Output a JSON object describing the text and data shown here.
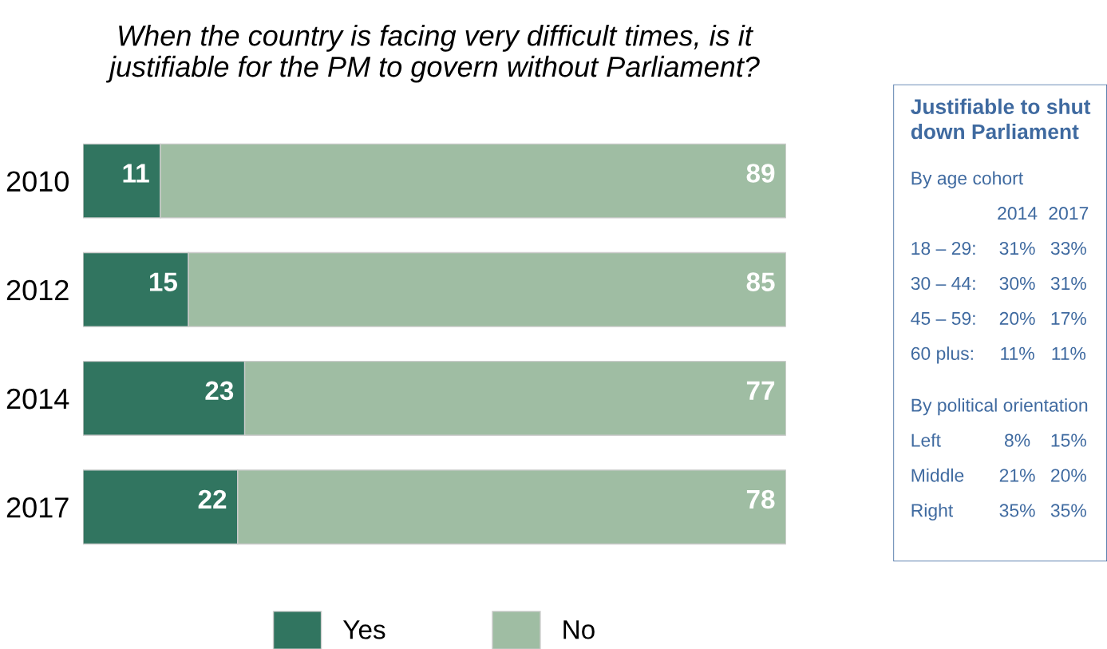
{
  "chart_data": [
    {
      "type": "bar",
      "orientation": "horizontal",
      "stacked": true,
      "title": "When the country is facing very difficult times, is it\njustifiable for the PM to govern without Parliament?",
      "categories": [
        "2010",
        "2012",
        "2014",
        "2017"
      ],
      "series": [
        {
          "name": "Yes",
          "color": "#317560",
          "values": [
            11,
            15,
            23,
            22
          ]
        },
        {
          "name": "No",
          "color": "#9fbda3",
          "values": [
            89,
            85,
            77,
            78
          ]
        }
      ],
      "xlim": [
        0,
        100
      ],
      "data_labels": true,
      "legend": "bottom",
      "tick_labels": "y",
      "grid": false
    },
    {
      "type": "other",
      "title": "Justifiable to shut\ndown Parliament",
      "annotations": [
        "By age cohort",
        "\t2014\t2017",
        "18 – 29:\t31%\t33%",
        "30 – 44:\t30%\t31%",
        "45 – 59:\t20%\t17%",
        "60 plus:\t11%\t11%",
        "By political orientation",
        "Left\t8%\t15%",
        "Middle\t21%\t20%",
        "Right\t35%\t35%"
      ]
    }
  ]
}
